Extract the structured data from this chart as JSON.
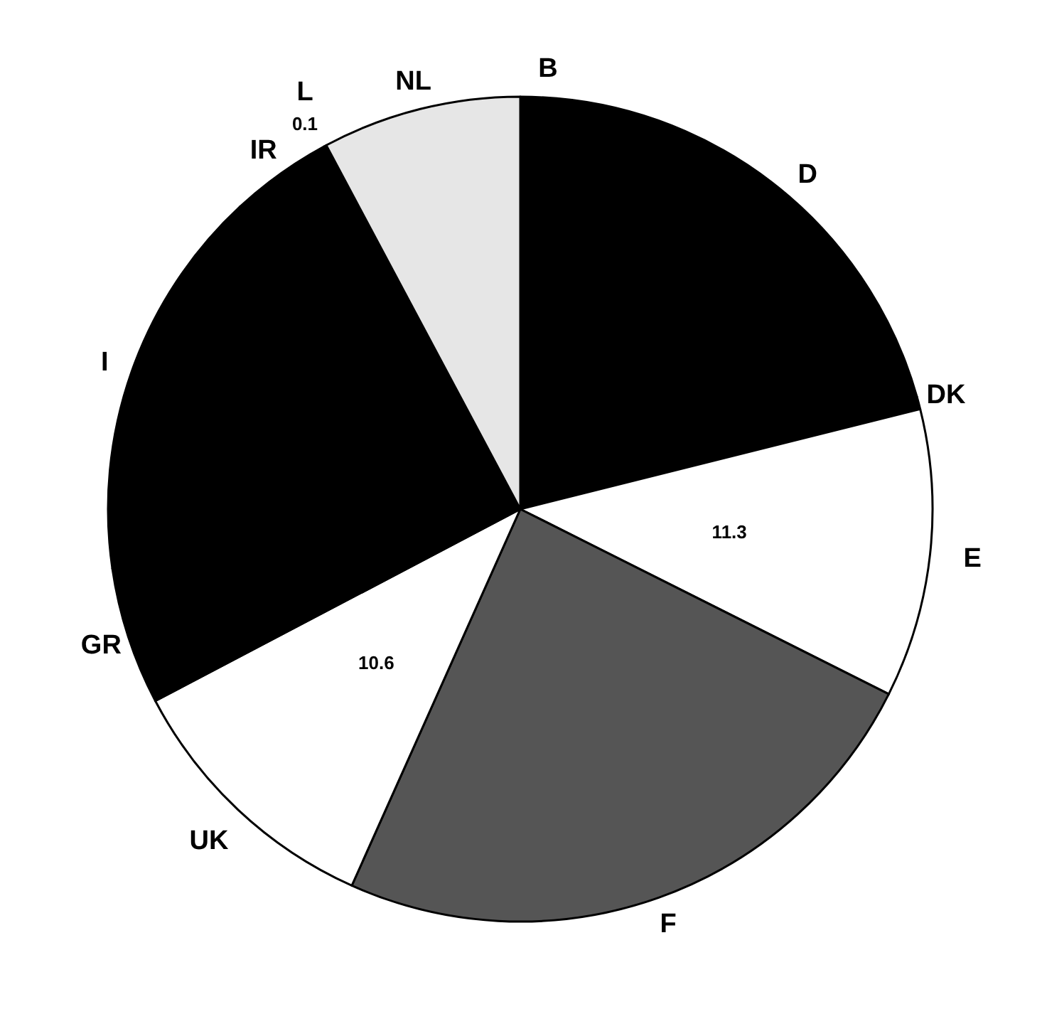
{
  "chart_data": {
    "type": "pie",
    "categories": [
      "B",
      "D",
      "DK",
      "E",
      "F",
      "UK",
      "GR",
      "I",
      "IR",
      "L",
      "NL"
    ],
    "values": [
      2.0,
      18.6,
      0.5,
      11.3,
      24.3,
      10.6,
      5.4,
      15.4,
      4.0,
      0.1,
      7.8
    ],
    "colors": [
      "#000000",
      "#000000",
      "#000000",
      "#ffffff",
      "#555555",
      "#ffffff",
      "#000000",
      "#000000",
      "#000000",
      "#000000",
      "#e6e6e6"
    ],
    "value_labels": [
      null,
      null,
      null,
      "11.3",
      null,
      "10.6",
      null,
      null,
      null,
      "0.1",
      null
    ],
    "legend": false
  }
}
